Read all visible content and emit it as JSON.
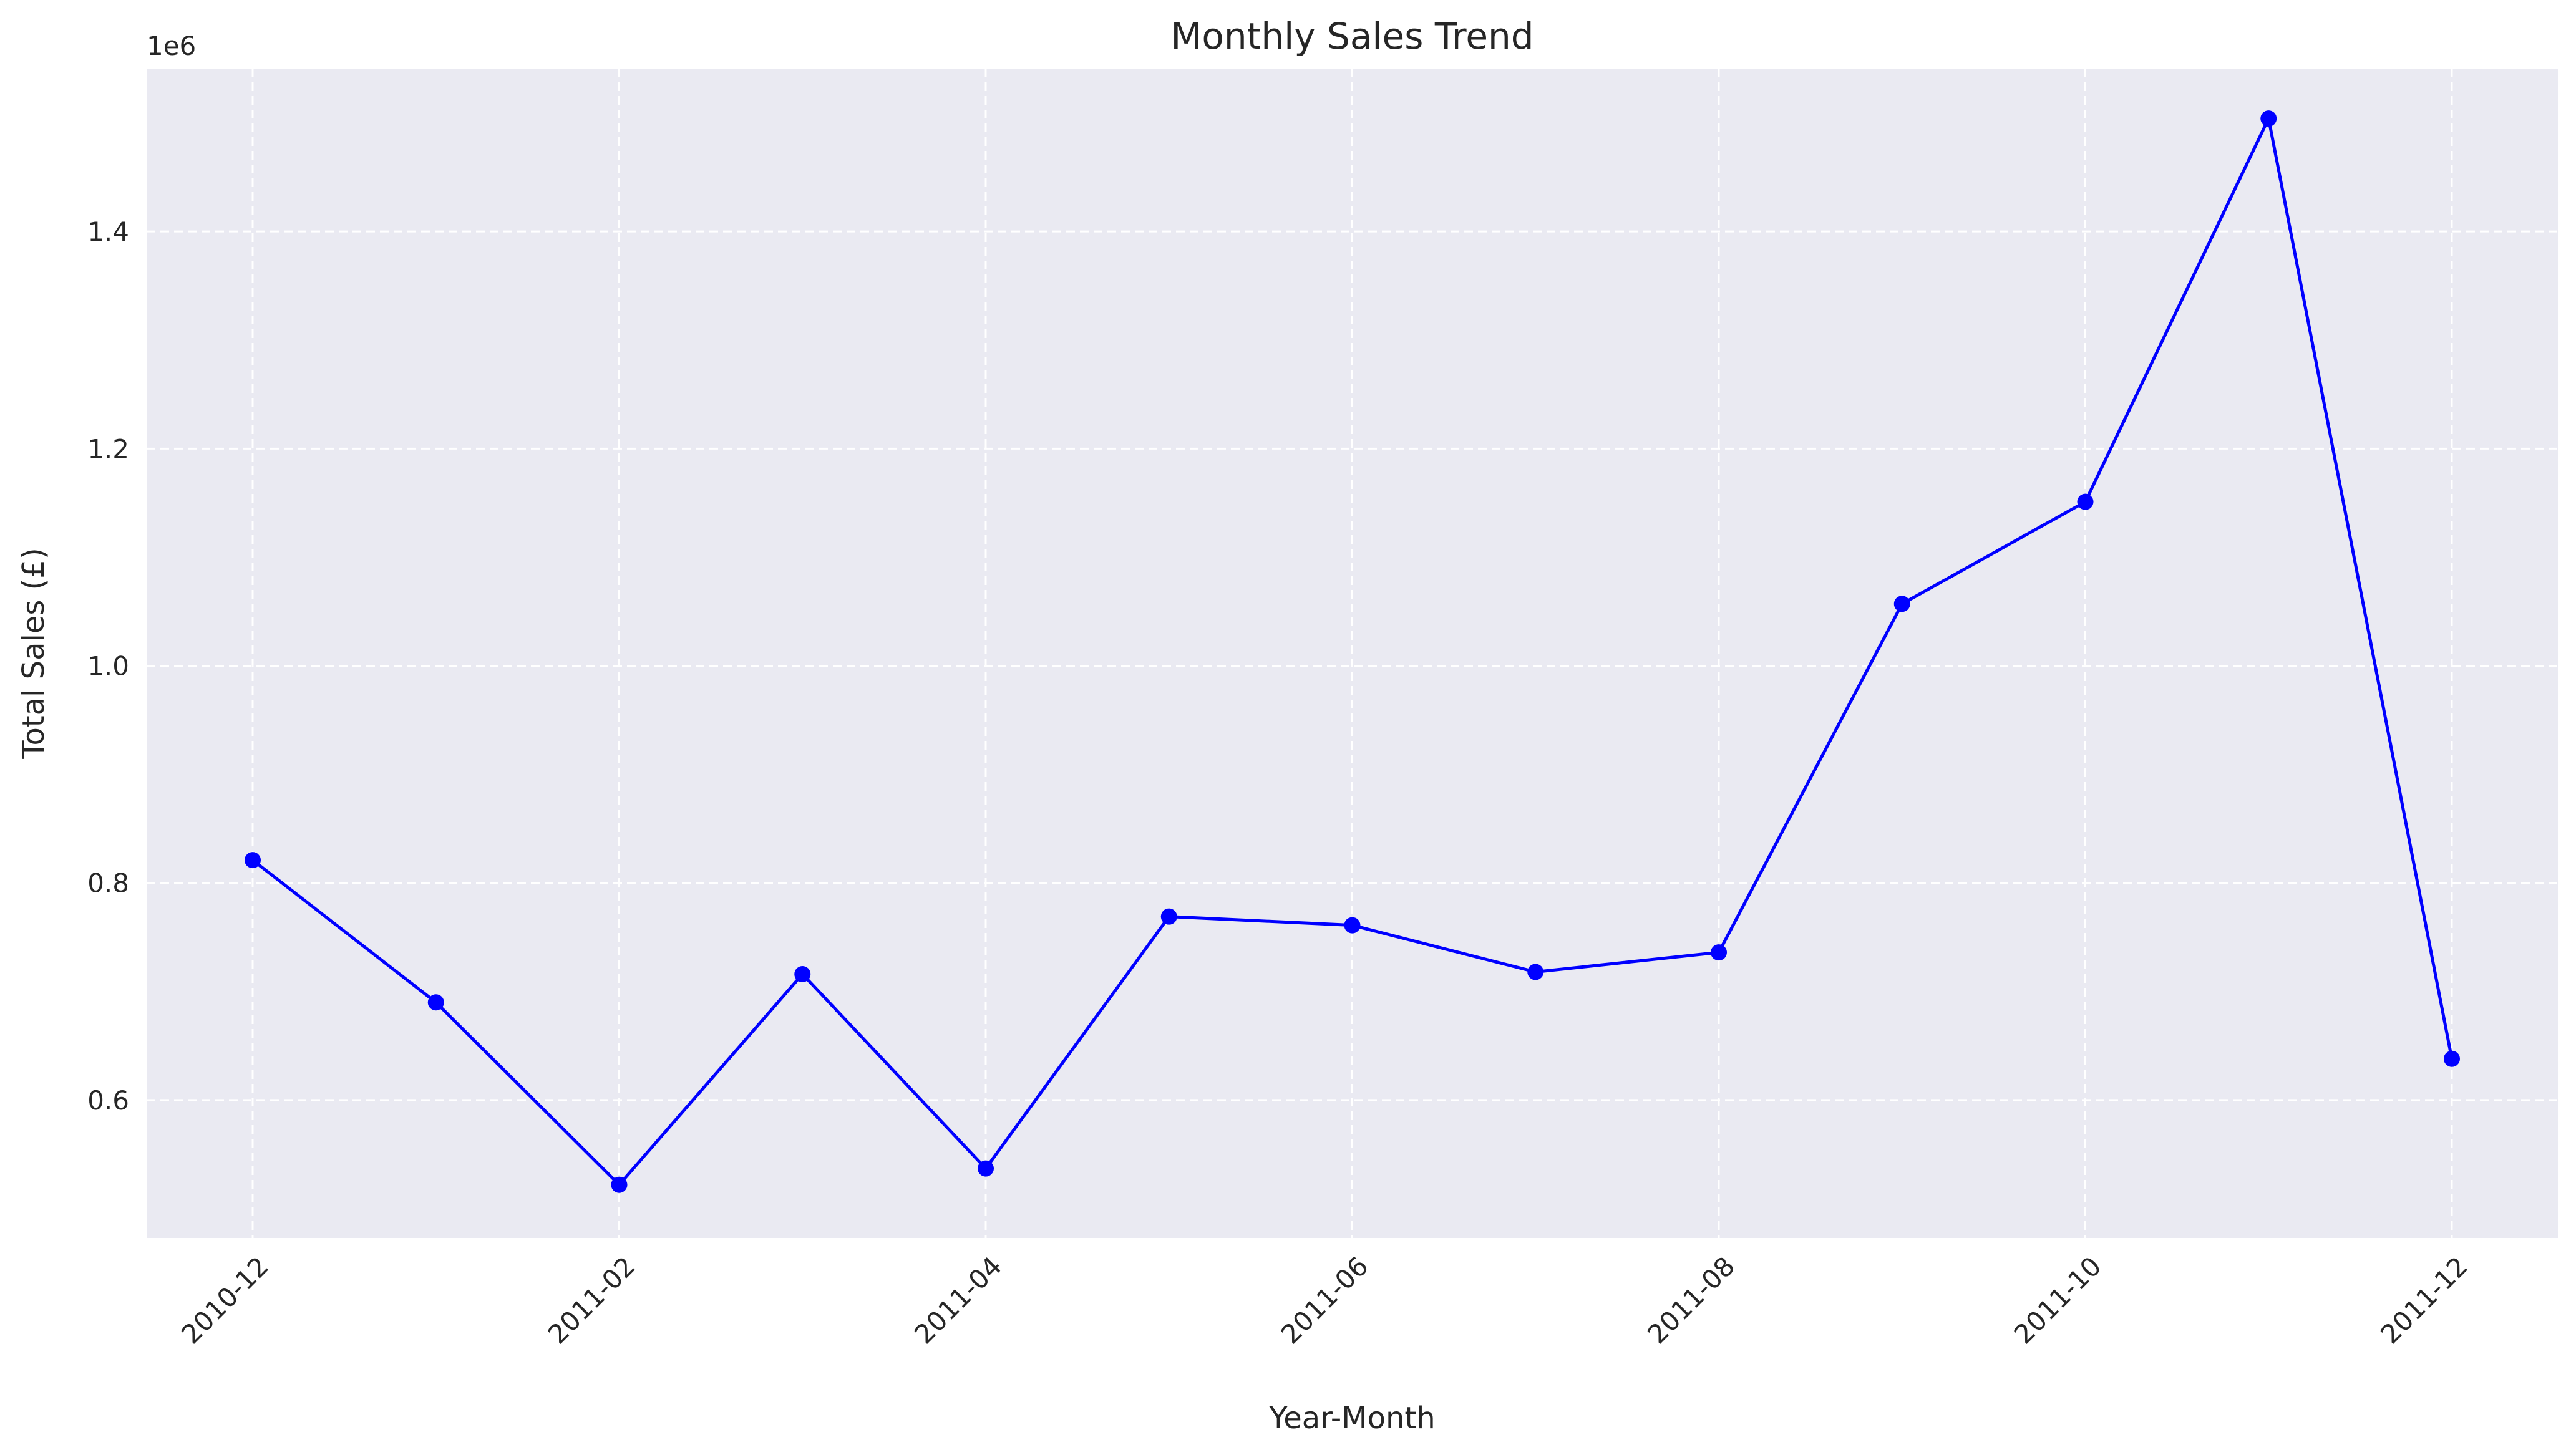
{
  "chart_data": {
    "type": "line",
    "title": "Monthly Sales Trend",
    "xlabel": "Year-Month",
    "ylabel": "Total Sales (£)",
    "y_offset_label": "1e6",
    "x": [
      "2010-12",
      "2011-01",
      "2011-02",
      "2011-03",
      "2011-04",
      "2011-05",
      "2011-06",
      "2011-07",
      "2011-08",
      "2011-09",
      "2011-10",
      "2011-11",
      "2011-12"
    ],
    "series": [
      {
        "values": [
          821000,
          690000,
          522000,
          716000,
          537000,
          769000,
          761000,
          718000,
          736000,
          1057000,
          1151000,
          1504000,
          638000
        ]
      }
    ],
    "x_ticks": [
      "2010-12",
      "2011-02",
      "2011-04",
      "2011-06",
      "2011-08",
      "2011-10",
      "2011-12"
    ],
    "y_ticks": [
      0.6,
      0.8,
      1.0,
      1.2,
      1.4
    ],
    "y_tick_labels": [
      "0.6",
      "0.8",
      "1.0",
      "1.2",
      "1.4"
    ],
    "ylim": [
      473000,
      1550000
    ],
    "grid": true,
    "colors": {
      "line": "#0000ff",
      "background": "#eaeaf2",
      "grid": "#ffffff"
    }
  }
}
